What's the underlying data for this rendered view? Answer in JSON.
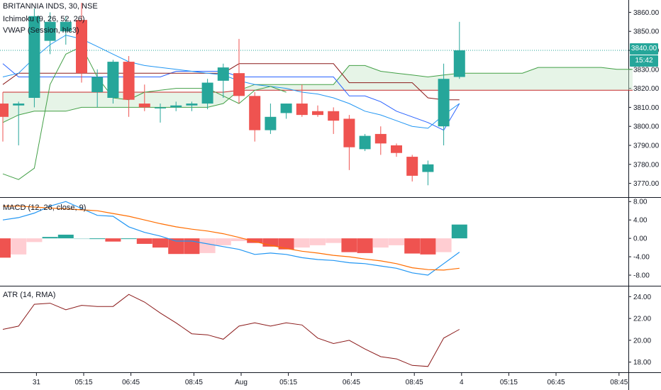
{
  "header": {
    "symbol_title": "BRITANNIA INDS, 30, NSE",
    "ichimoku_label": "Ichimoku (9, 26, 52, 26)",
    "vwap_label": "VWAP (Session, hlc3)",
    "macd_label": "MACD (12, 26, close, 9)",
    "atr_label": "ATR (14, RMA)"
  },
  "price_badge": {
    "price": "3840.00",
    "countdown": "15:42"
  },
  "colors": {
    "up": "#26a69a",
    "down": "#ef5350",
    "macd": "#2196f3",
    "signal": "#ff6d00",
    "atr": "#8b1a1a",
    "cloud": "#c8e6c9",
    "grid": "#131722"
  },
  "chart_data": [
    {
      "type": "candlestick",
      "title": "BRITANNIA INDS, 30, NSE",
      "ylim": [
        3765,
        3865
      ],
      "yticks": [
        3770,
        3780,
        3790,
        3800,
        3810,
        3820,
        3830,
        3840,
        3850,
        3860
      ],
      "ytick_labels": [
        "3770.00",
        "3780.00",
        "3790.00",
        "3800.00",
        "3810.00",
        "3820.00",
        "3830.00",
        "3840.00",
        "3850.00",
        "3860.00"
      ],
      "xtick_labels": [
        "31",
        "05:15",
        "06:45",
        "08:45",
        "Aug",
        "05:15",
        "06:45",
        "08:45",
        "4",
        "05:15",
        "06:45",
        "08:45"
      ],
      "xtick_slots": [
        2,
        5,
        8,
        12,
        15,
        18,
        22,
        26,
        29,
        32,
        35,
        39
      ],
      "last_price": 3840,
      "candles": [
        {
          "o": 3812,
          "h": 3818,
          "l": 3792,
          "c": 3805
        },
        {
          "o": 3811,
          "h": 3813,
          "l": 3790,
          "c": 3812
        },
        {
          "o": 3815,
          "h": 3862,
          "l": 3810,
          "c": 3858
        },
        {
          "o": 3845,
          "h": 3860,
          "l": 3838,
          "c": 3855
        },
        {
          "o": 3850,
          "h": 3858,
          "l": 3843,
          "c": 3855
        },
        {
          "o": 3856,
          "h": 3865,
          "l": 3823,
          "c": 3828
        },
        {
          "o": 3818,
          "h": 3830,
          "l": 3810,
          "c": 3826
        },
        {
          "o": 3815,
          "h": 3835,
          "l": 3812,
          "c": 3834
        },
        {
          "o": 3834,
          "h": 3837,
          "l": 3805,
          "c": 3814
        },
        {
          "o": 3812,
          "h": 3822,
          "l": 3808,
          "c": 3810
        },
        {
          "o": 3810,
          "h": 3812,
          "l": 3802,
          "c": 3810
        },
        {
          "o": 3810,
          "h": 3813,
          "l": 3808,
          "c": 3811
        },
        {
          "o": 3811,
          "h": 3813,
          "l": 3808,
          "c": 3812
        },
        {
          "o": 3812,
          "h": 3825,
          "l": 3809,
          "c": 3823
        },
        {
          "o": 3824,
          "h": 3833,
          "l": 3815,
          "c": 3831
        },
        {
          "o": 3828,
          "h": 3846,
          "l": 3812,
          "c": 3816
        },
        {
          "o": 3816,
          "h": 3818,
          "l": 3792,
          "c": 3798
        },
        {
          "o": 3798,
          "h": 3812,
          "l": 3796,
          "c": 3805
        },
        {
          "o": 3807,
          "h": 3812,
          "l": 3804,
          "c": 3812
        },
        {
          "o": 3812,
          "h": 3822,
          "l": 3805,
          "c": 3806
        },
        {
          "o": 3808,
          "h": 3811,
          "l": 3805,
          "c": 3806
        },
        {
          "o": 3808,
          "h": 3810,
          "l": 3796,
          "c": 3803
        },
        {
          "o": 3804,
          "h": 3806,
          "l": 3777,
          "c": 3789
        },
        {
          "o": 3788,
          "h": 3796,
          "l": 3787,
          "c": 3795
        },
        {
          "o": 3796,
          "h": 3800,
          "l": 3785,
          "c": 3791
        },
        {
          "o": 3790,
          "h": 3791,
          "l": 3784,
          "c": 3786
        },
        {
          "o": 3784,
          "h": 3785,
          "l": 3771,
          "c": 3774
        },
        {
          "o": 3776,
          "h": 3782,
          "l": 3769,
          "c": 3780
        },
        {
          "o": 3800,
          "h": 3833,
          "l": 3790,
          "c": 3825
        },
        {
          "o": 3826,
          "h": 3855,
          "l": 3825,
          "c": 3840
        }
      ],
      "lines": [
        {
          "name": "Ichimoku conversion",
          "color": "#2962ff",
          "values": [
            3833,
            3826,
            3826,
            3826,
            3826,
            3826,
            3826,
            3826,
            3826,
            3826,
            3826,
            3829,
            3829,
            3829,
            3829,
            3826,
            3826,
            3826,
            3826,
            3826,
            3826,
            3826,
            3816,
            3816,
            3813,
            3808,
            3805,
            3802,
            3798,
            3812
          ]
        },
        {
          "name": "Ichimoku base line",
          "color": "#8b1a1a",
          "values": [
            3822,
            3828,
            3828,
            3828,
            3828,
            3828,
            3828,
            3828,
            3828,
            3828,
            3828,
            3828,
            3828,
            3828,
            3828,
            3833,
            3833,
            3833,
            3833,
            3833,
            3833,
            3833,
            3823,
            3823,
            3823,
            3823,
            3823,
            3815,
            3814,
            3814
          ]
        },
        {
          "name": "VWAP",
          "color": "#2196f3",
          "values": [
            3826,
            3828,
            3836,
            3843,
            3848,
            3846,
            3842,
            3838,
            3834,
            3832,
            3831,
            3830,
            3829,
            3828,
            3827,
            3824,
            3822,
            3821,
            3820,
            3818,
            3817,
            3815,
            3812,
            3808,
            3806,
            3803,
            3800,
            3799,
            3806,
            3812
          ]
        },
        {
          "name": "Lagging span",
          "color": "#43a047",
          "values": [
            3775,
            3772,
            3778,
            3822,
            3838,
            3842,
            3826,
            3815,
            3814,
            3818,
            3819,
            3820,
            3820,
            3820,
            3816,
            3812,
            3819,
            3821,
            3818
          ]
        }
      ],
      "cloud": {
        "spans": [
          {
            "name": "Leading span A",
            "color": "#43a047",
            "from_slot": 0,
            "values": [
              3802,
              3806,
              3808,
              3808,
              3808,
              3810,
              3810,
              3810,
              3810,
              3810,
              3810,
              3810,
              3810,
              3810,
              3812,
              3819,
              3822,
              3822,
              3822,
              3822,
              3822,
              3822,
              3832,
              3832,
              3829,
              3828,
              3827,
              3826,
              3827,
              3828,
              3828,
              3828,
              3828,
              3828,
              3831,
              3831,
              3831,
              3831,
              3831,
              3830,
              3830
            ]
          },
          {
            "name": "Leading span B",
            "color": "#c62828",
            "from_slot": 0,
            "values": [
              3818,
              3818,
              3818,
              3818,
              3818,
              3818,
              3818,
              3818,
              3818,
              3818,
              3818,
              3818,
              3818,
              3818,
              3818,
              3819,
              3819,
              3819,
              3819,
              3819,
              3819,
              3819,
              3819,
              3819,
              3819,
              3819,
              3819,
              3819,
              3819,
              3819,
              3819,
              3819,
              3819,
              3819,
              3819,
              3819,
              3819,
              3819,
              3819,
              3819,
              3819
            ]
          }
        ]
      }
    },
    {
      "type": "bar+line",
      "title": "MACD (12, 26, close, 9)",
      "ylim": [
        -10,
        8.5
      ],
      "yticks": [
        8,
        4,
        0,
        -4,
        -8
      ],
      "ytick_labels": [
        "8.00",
        "4.00",
        "0.00",
        "-4.00",
        "-8.00"
      ],
      "histogram": [
        -4.2,
        -3.5,
        -0.8,
        0.3,
        0.8,
        0,
        0,
        -0.7,
        0,
        -1.2,
        -2.0,
        -3.4,
        -3.4,
        -3.2,
        -1.5,
        -0.6,
        -1.0,
        -1.8,
        -2.4,
        -2.0,
        -1.5,
        -1.0,
        -3.0,
        -3.2,
        -2.0,
        -1.5,
        -3.3,
        -3.5,
        -3.0,
        3.0
      ],
      "series": [
        {
          "name": "MACD",
          "color": "#2196f3",
          "values": [
            4.0,
            4.5,
            5.5,
            7.0,
            8.0,
            6.5,
            5.0,
            4.8,
            2.5,
            1.3,
            0.5,
            -0.6,
            -0.6,
            -1.2,
            -1.8,
            -2.4,
            -3.5,
            -3.2,
            -3.5,
            -4.2,
            -4.6,
            -4.8,
            -5.3,
            -5.5,
            -6.0,
            -6.5,
            -7.5,
            -8.0,
            -5.5,
            -3.0
          ]
        },
        {
          "name": "Signal",
          "color": "#ff6d00",
          "values": [
            7.0,
            7.0,
            6.8,
            6.6,
            6.4,
            6.2,
            6.0,
            5.4,
            4.8,
            4.0,
            3.2,
            2.5,
            2.0,
            1.6,
            1.0,
            0.2,
            -0.7,
            -1.5,
            -2.2,
            -2.8,
            -3.2,
            -3.7,
            -4.0,
            -4.5,
            -4.9,
            -5.5,
            -6.4,
            -6.8,
            -6.9,
            -6.5
          ]
        }
      ]
    },
    {
      "type": "line",
      "title": "ATR (14, RMA)",
      "ylim": [
        17.2,
        24.8
      ],
      "yticks": [
        24,
        22,
        20,
        18
      ],
      "ytick_labels": [
        "24.00",
        "22.00",
        "20.00",
        "18.00"
      ],
      "series": [
        {
          "name": "ATR",
          "color": "#8b1a1a",
          "values": [
            21.0,
            21.3,
            23.3,
            23.4,
            22.8,
            23.2,
            23.1,
            23.1,
            24.2,
            23.5,
            22.5,
            21.6,
            20.6,
            20.5,
            20.1,
            21.3,
            21.6,
            21.3,
            21.6,
            21.4,
            20.2,
            19.7,
            20.0,
            19.2,
            18.5,
            18.3,
            17.7,
            17.6,
            20.2,
            21.0
          ]
        }
      ]
    }
  ]
}
